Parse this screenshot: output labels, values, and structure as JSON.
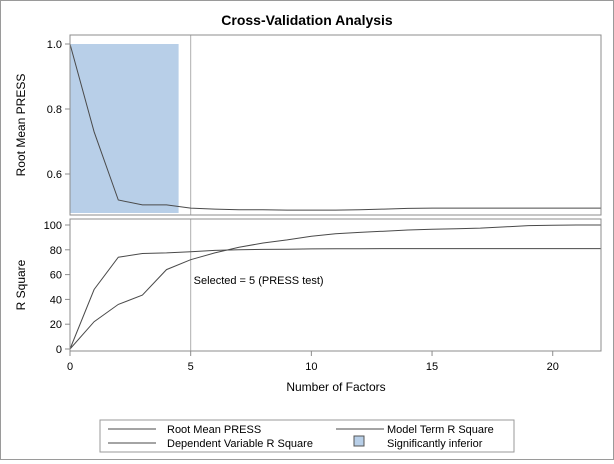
{
  "chart_data": {
    "type": "line",
    "title": "Cross-Validation Analysis",
    "xlabel": "Number of Factors",
    "xlim": [
      0,
      22
    ],
    "x_ticks": [
      0,
      5,
      10,
      15,
      20
    ],
    "selected_line_x": 5,
    "annotation": "Selected = 5 (PRESS test)",
    "inferior_region": {
      "x_start": 0,
      "x_end": 4.5,
      "label": "Significantly inferior",
      "color": "#b8cfe8"
    },
    "panels": [
      {
        "name": "press-panel",
        "ylabel": "Root Mean PRESS",
        "ylim": [
          0.48,
          1.0
        ],
        "y_ticks": [
          0.6,
          0.8,
          1.0
        ],
        "y_tick_labels": [
          "0.6",
          "0.8",
          "1.0"
        ],
        "series": [
          {
            "name": "Root Mean PRESS",
            "x": [
              0,
              1,
              2,
              3,
              4,
              5,
              6,
              7,
              8,
              9,
              10,
              11,
              12,
              13,
              14,
              15,
              16,
              17,
              18,
              19,
              20,
              21,
              22
            ],
            "values": [
              1.0,
              0.73,
              0.52,
              0.505,
              0.505,
              0.495,
              0.492,
              0.49,
              0.49,
              0.489,
              0.489,
              0.489,
              0.49,
              0.492,
              0.494,
              0.495,
              0.495,
              0.495,
              0.495,
              0.495,
              0.495,
              0.495,
              0.495
            ]
          }
        ]
      },
      {
        "name": "rsquare-panel",
        "ylabel": "R Square",
        "ylim": [
          0,
          100
        ],
        "y_ticks": [
          0,
          20,
          40,
          60,
          80,
          100
        ],
        "y_tick_labels": [
          "0",
          "20",
          "40",
          "60",
          "80",
          "100"
        ],
        "series": [
          {
            "name": "Model Term R Square",
            "x": [
              0,
              1,
              2,
              3,
              4,
              5,
              6,
              7,
              8,
              9,
              10,
              11,
              12,
              13,
              14,
              15,
              16,
              17,
              18,
              19,
              20,
              21,
              22
            ],
            "values": [
              0,
              48,
              74,
              77,
              77.5,
              78.5,
              79.5,
              80,
              80.3,
              80.5,
              80.7,
              80.8,
              80.9,
              81,
              81,
              81,
              81,
              81,
              81,
              81,
              81,
              81,
              81
            ]
          },
          {
            "name": "Dependent Variable R Square",
            "x": [
              0,
              1,
              2,
              3,
              4,
              5,
              6,
              7,
              8,
              9,
              10,
              11,
              12,
              13,
              14,
              15,
              16,
              17,
              18,
              19,
              20,
              21,
              22
            ],
            "values": [
              0,
              22,
              36,
              43.5,
              64,
              72,
              77.5,
              82,
              85.5,
              88,
              91,
              93,
              94,
              95,
              96,
              96.5,
              97,
              97.5,
              98.5,
              99.5,
              99.8,
              100,
              100
            ]
          }
        ]
      }
    ],
    "legend": {
      "placement": "bottom",
      "items": [
        {
          "label": "Root Mean PRESS",
          "kind": "line"
        },
        {
          "label": "Model Term R Square",
          "kind": "line"
        },
        {
          "label": "Dependent Variable R Square",
          "kind": "line"
        },
        {
          "label": "Significantly inferior",
          "kind": "swatch"
        }
      ]
    },
    "colors": {
      "line": "#4a4a4a",
      "ref_line": "#b0b0b0",
      "panel_border": "#8c8c8c",
      "fill": "#b8cfe8"
    }
  }
}
